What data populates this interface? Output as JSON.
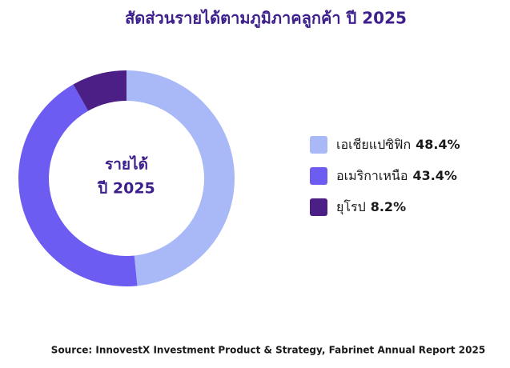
{
  "chart_data": {
    "type": "pie",
    "title": "สัดส่วนรายได้ตามภูมิภาคลูกค้า ปี 2025",
    "center_text": [
      "รายได้",
      "ปี 2025"
    ],
    "categories": [
      "เอเชียแปซิฟิก",
      "อเมริกาเหนือ",
      "ยุโรป"
    ],
    "values": [
      48.4,
      43.4,
      8.2
    ],
    "value_labels": [
      "48.4%",
      "43.4%",
      "8.2%"
    ],
    "colors": [
      "#a9b9f7",
      "#6c5cf2",
      "#4b1f86"
    ],
    "source": "Source: InnovestX Investment Product & Strategy, Fabrinet Annual Report 2025"
  }
}
